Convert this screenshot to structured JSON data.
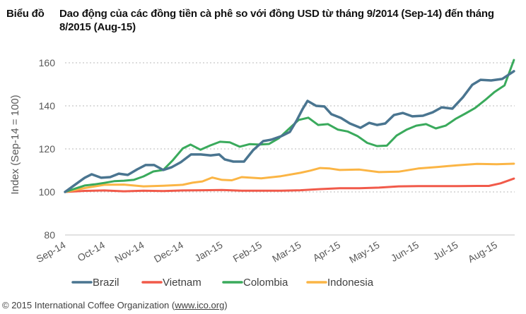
{
  "title": {
    "lead": "Biểu đồ",
    "text": "Dao động của các đồng tiền cà phê so với đồng USD từ tháng 9/2014 (Sep-14) đến tháng 8/2015 (Aug-15)"
  },
  "footer": {
    "copyright": "© 2015 International Coffee Organization (",
    "link": "www.ico.org",
    "close": ")"
  },
  "chart_data": {
    "type": "line",
    "title": "Biểu đồ Dao động của các đồng tiền cà phê so với đồng USD từ tháng 9/2014 (Sep-14) đến tháng 8/2015 (Aug-15)",
    "xlabel": "",
    "ylabel": "Index (Sep-14 = 100)",
    "ylim": [
      80,
      160
    ],
    "yticks": [
      80,
      100,
      120,
      140,
      160
    ],
    "grid": "horizontal-dotted",
    "legend": "bottom",
    "x_unit": "months since Sep-14",
    "xlim": [
      0,
      11.45
    ],
    "categories": [
      "Sep-14",
      "Oct-14",
      "Nov-14",
      "Dec-14",
      "Jan-15",
      "Feb-15",
      "Mar-15",
      "Apr-15",
      "May-15",
      "Jun-15",
      "Jul-15",
      "Aug-15"
    ],
    "series": [
      {
        "name": "Brazil",
        "color": "#4a7590",
        "x": [
          0,
          0.25,
          0.5,
          0.68,
          0.92,
          1.15,
          1.37,
          1.6,
          1.84,
          2.05,
          2.27,
          2.5,
          2.72,
          2.95,
          3.21,
          3.46,
          3.71,
          3.93,
          4.07,
          4.29,
          4.56,
          4.79,
          5.05,
          5.26,
          5.51,
          5.73,
          5.91,
          6.05,
          6.18,
          6.4,
          6.61,
          6.79,
          7.03,
          7.26,
          7.53,
          7.75,
          7.95,
          8.16,
          8.38,
          8.61,
          8.85,
          9.12,
          9.37,
          9.6,
          9.87,
          10.14,
          10.38,
          10.59,
          10.86,
          11.14,
          11.44
        ],
        "values": [
          100,
          103.3,
          106.6,
          108.2,
          106.6,
          106.9,
          108.5,
          107.9,
          110.5,
          112.5,
          112.5,
          110.2,
          111.5,
          113.8,
          117.4,
          117.4,
          117.0,
          117.4,
          115.1,
          114.1,
          114.1,
          119.3,
          123.6,
          124.3,
          125.9,
          127.9,
          133.4,
          138.4,
          142.3,
          140.0,
          139.7,
          136.1,
          134.4,
          131.8,
          129.8,
          132.1,
          131.1,
          131.8,
          135.7,
          136.7,
          135.1,
          135.4,
          137.0,
          139.3,
          138.7,
          144.0,
          149.8,
          152.1,
          151.8,
          152.5,
          156.1
        ]
      },
      {
        "name": "Vietnam",
        "color": "#f15a4a",
        "x": [
          0,
          0.5,
          1,
          1.5,
          2,
          2.5,
          3,
          3.5,
          4,
          4.5,
          5,
          5.5,
          6,
          6.5,
          7,
          7.5,
          8,
          8.5,
          9,
          9.5,
          10,
          10.5,
          10.8,
          11.1,
          11.44
        ],
        "values": [
          100,
          100.5,
          100.7,
          100.3,
          100.6,
          100.4,
          100.7,
          100.8,
          100.9,
          100.6,
          100.6,
          100.6,
          100.8,
          101.3,
          101.7,
          101.7,
          102.0,
          102.6,
          102.7,
          102.7,
          102.7,
          102.8,
          102.8,
          104.0,
          106.2
        ]
      },
      {
        "name": "Colombia",
        "color": "#3aaa5c",
        "x": [
          0,
          0.25,
          0.5,
          0.75,
          1,
          1.25,
          1.5,
          1.75,
          2,
          2.25,
          2.5,
          2.75,
          3,
          3.2,
          3.45,
          3.7,
          3.95,
          4.2,
          4.45,
          4.7,
          4.95,
          5.2,
          5.45,
          5.7,
          5.95,
          6.2,
          6.45,
          6.7,
          6.95,
          7.2,
          7.45,
          7.7,
          7.95,
          8.2,
          8.45,
          8.7,
          8.95,
          9.2,
          9.45,
          9.7,
          9.95,
          10.2,
          10.45,
          10.7,
          10.95,
          11.2,
          11.44
        ],
        "values": [
          100,
          101.5,
          103.0,
          103.5,
          104.2,
          105.0,
          105.2,
          105.6,
          107.2,
          109.5,
          110.2,
          114.8,
          120.2,
          122.0,
          119.6,
          121.6,
          123.3,
          123.0,
          121.0,
          122.2,
          122.0,
          122.3,
          125.0,
          129.2,
          133.4,
          134.5,
          131.1,
          131.5,
          129.0,
          128.1,
          126.0,
          122.8,
          121.3,
          121.5,
          126.2,
          128.9,
          130.8,
          131.5,
          129.5,
          130.8,
          133.9,
          136.4,
          139.0,
          142.6,
          146.5,
          149.5,
          161.3
        ]
      },
      {
        "name": "Indonesia",
        "color": "#fbb545",
        "x": [
          0,
          0.5,
          1,
          1.5,
          2,
          2.5,
          3,
          3.25,
          3.5,
          3.75,
          4,
          4.25,
          4.5,
          4.75,
          5,
          5.5,
          6,
          6.25,
          6.5,
          6.75,
          7,
          7.5,
          8,
          8.5,
          9,
          9.5,
          10,
          10.5,
          11,
          11.44
        ],
        "values": [
          100,
          101.8,
          103.3,
          103.4,
          102.6,
          102.9,
          103.3,
          104.3,
          104.9,
          106.7,
          105.6,
          105.4,
          106.9,
          106.6,
          106.3,
          107.3,
          108.9,
          109.9,
          111.1,
          110.9,
          110.2,
          110.4,
          109.2,
          109.4,
          110.9,
          111.6,
          112.4,
          113.0,
          112.9,
          113.1
        ]
      }
    ]
  }
}
